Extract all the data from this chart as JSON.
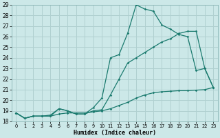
{
  "xlabel": "Humidex (Indice chaleur)",
  "ylabel": "",
  "xlim": [
    -0.5,
    23.5
  ],
  "ylim": [
    18,
    29
  ],
  "xticks": [
    0,
    1,
    2,
    3,
    4,
    5,
    6,
    7,
    8,
    9,
    10,
    11,
    12,
    13,
    14,
    15,
    16,
    17,
    18,
    19,
    20,
    21,
    22,
    23
  ],
  "yticks": [
    18,
    19,
    20,
    21,
    22,
    23,
    24,
    25,
    26,
    27,
    28,
    29
  ],
  "bg_color": "#cce8e8",
  "line_color": "#1a7a6e",
  "grid_color": "#b0d0d0",
  "line1_x": [
    0,
    1,
    2,
    3,
    4,
    5,
    6,
    7,
    8,
    9,
    10,
    11,
    12,
    13,
    14,
    15,
    16,
    17,
    18,
    19,
    20,
    21,
    22,
    23
  ],
  "line1_y": [
    18.8,
    18.3,
    18.5,
    18.5,
    18.5,
    19.2,
    19.0,
    18.7,
    18.7,
    19.3,
    20.2,
    24.0,
    24.3,
    26.3,
    29.0,
    28.6,
    28.4,
    27.1,
    26.7,
    26.2,
    26.0,
    22.8,
    23.0,
    21.2
  ],
  "line2_x": [
    0,
    1,
    2,
    3,
    4,
    5,
    6,
    7,
    8,
    9,
    10,
    11,
    12,
    13,
    14,
    15,
    16,
    17,
    18,
    19,
    20,
    21,
    22,
    23
  ],
  "line2_y": [
    18.8,
    18.3,
    18.5,
    18.5,
    18.6,
    19.2,
    19.0,
    18.7,
    18.7,
    19.0,
    19.1,
    20.5,
    22.0,
    23.5,
    24.0,
    24.5,
    25.0,
    25.5,
    25.8,
    26.3,
    26.5,
    26.5,
    23.0,
    21.2
  ],
  "line3_x": [
    0,
    1,
    2,
    3,
    4,
    5,
    6,
    7,
    8,
    9,
    10,
    11,
    12,
    13,
    14,
    15,
    16,
    17,
    18,
    19,
    20,
    21,
    22,
    23
  ],
  "line3_y": [
    18.8,
    18.3,
    18.5,
    18.5,
    18.5,
    18.7,
    18.8,
    18.8,
    18.8,
    18.9,
    19.0,
    19.2,
    19.5,
    19.8,
    20.2,
    20.5,
    20.7,
    20.8,
    20.85,
    20.9,
    20.9,
    20.95,
    21.0,
    21.2
  ],
  "marker": "D",
  "markersize": 1.8,
  "linewidth": 0.9
}
